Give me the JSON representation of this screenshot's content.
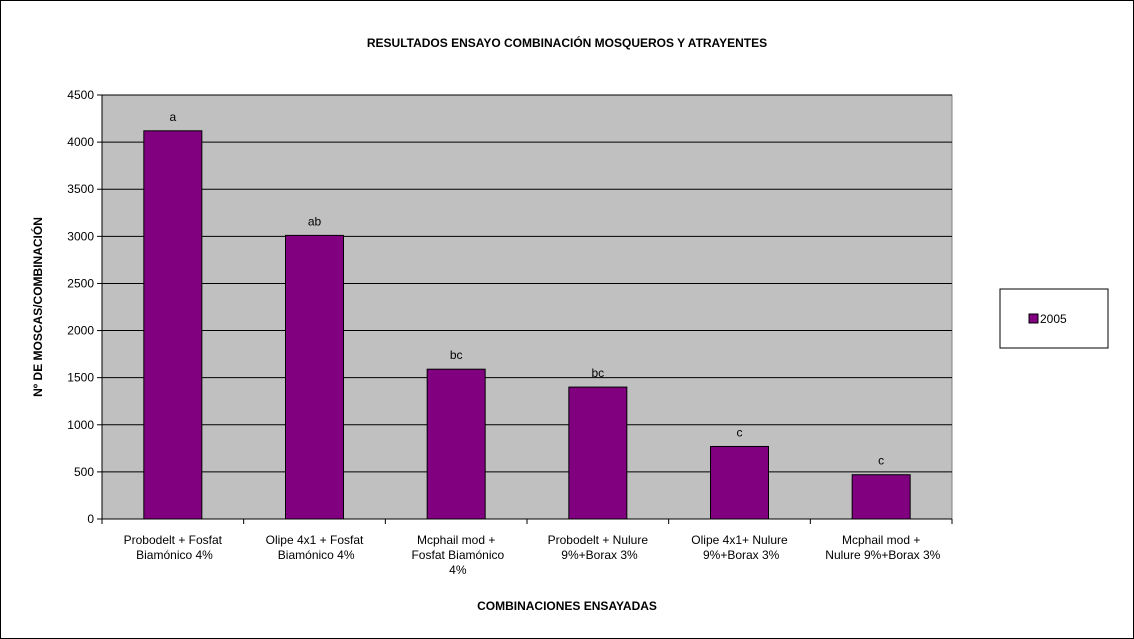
{
  "chart_data": {
    "type": "bar",
    "title": "RESULTADOS ENSAYO COMBINACIÓN MOSQUEROS Y ATRAYENTES",
    "x_label": "COMBINACIONES ENSAYADAS",
    "y_label": "Nº DE MOSCAS/COMBINACIÓN",
    "categories": [
      "Probodelt + Fosfat Biamónico 4%",
      "Olipe 4x1 + Fosfat Biamónico 4%",
      "Mcphail mod + Fosfat Biamónico 4%",
      "Probodelt + Nulure 9%+Borax 3%",
      "Olipe 4x1+ Nulure 9%+Borax 3%",
      "Mcphail mod + Nulure 9%+Borax 3%"
    ],
    "series": [
      {
        "name": "2005",
        "color": "#800080",
        "values": [
          4120,
          3010,
          1590,
          1400,
          770,
          470
        ]
      }
    ],
    "annotations": [
      "a",
      "ab",
      "bc",
      "bc",
      "c",
      "c"
    ],
    "ylim": [
      0,
      4500
    ],
    "yticks": [
      0,
      500,
      1000,
      1500,
      2000,
      2500,
      3000,
      3500,
      4000,
      4500
    ],
    "grid": true,
    "legend": "right"
  }
}
